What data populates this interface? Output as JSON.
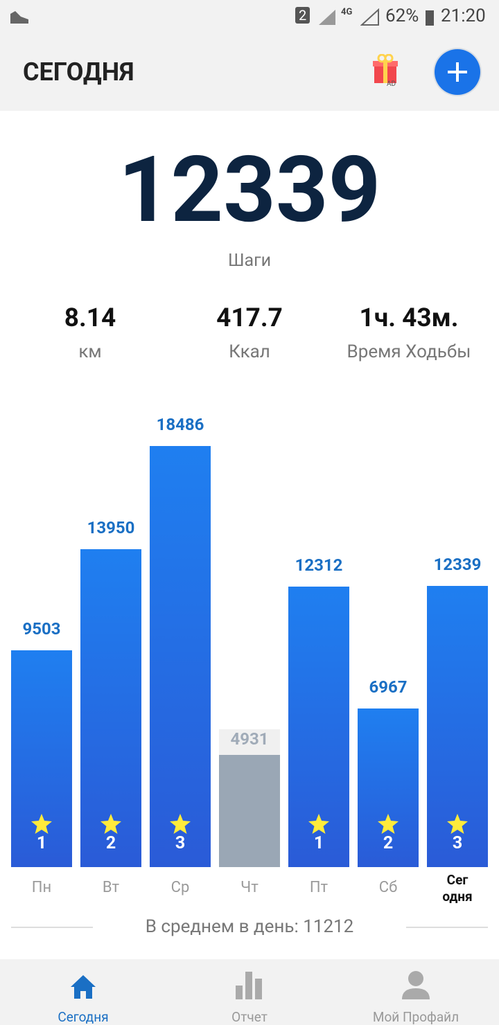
{
  "status_bar": {
    "sim": "2",
    "network": "4G",
    "battery": "62%",
    "time": "21:20"
  },
  "header": {
    "title": "СЕГОДНЯ",
    "ad_badge": "AD"
  },
  "summary": {
    "steps": "12339",
    "steps_label": "Шаги",
    "stats": [
      {
        "value": "8.14",
        "label": "км"
      },
      {
        "value": "417.7",
        "label": "Ккал"
      },
      {
        "value": "1ч. 43м.",
        "label": "Время Ходьбы"
      }
    ]
  },
  "chart_data": {
    "type": "bar",
    "categories": [
      "Пн",
      "Вт",
      "Ср",
      "Чт",
      "Пт",
      "Сб",
      "Сег\nодня"
    ],
    "values": [
      9503,
      13950,
      18486,
      4931,
      12312,
      6967,
      12339
    ],
    "stars": [
      1,
      2,
      3,
      null,
      1,
      2,
      3
    ],
    "colors": [
      "#1f7ff0",
      "#1f7ff0",
      "#1f7ff0",
      "#9aa7b5",
      "#1f7ff0",
      "#1f7ff0",
      "#1f7ff0"
    ]
  },
  "average": "В среднем в день: 11212",
  "nav": [
    {
      "label": "Сегодня"
    },
    {
      "label": "Отчет"
    },
    {
      "label": "Мой Профайл"
    }
  ]
}
